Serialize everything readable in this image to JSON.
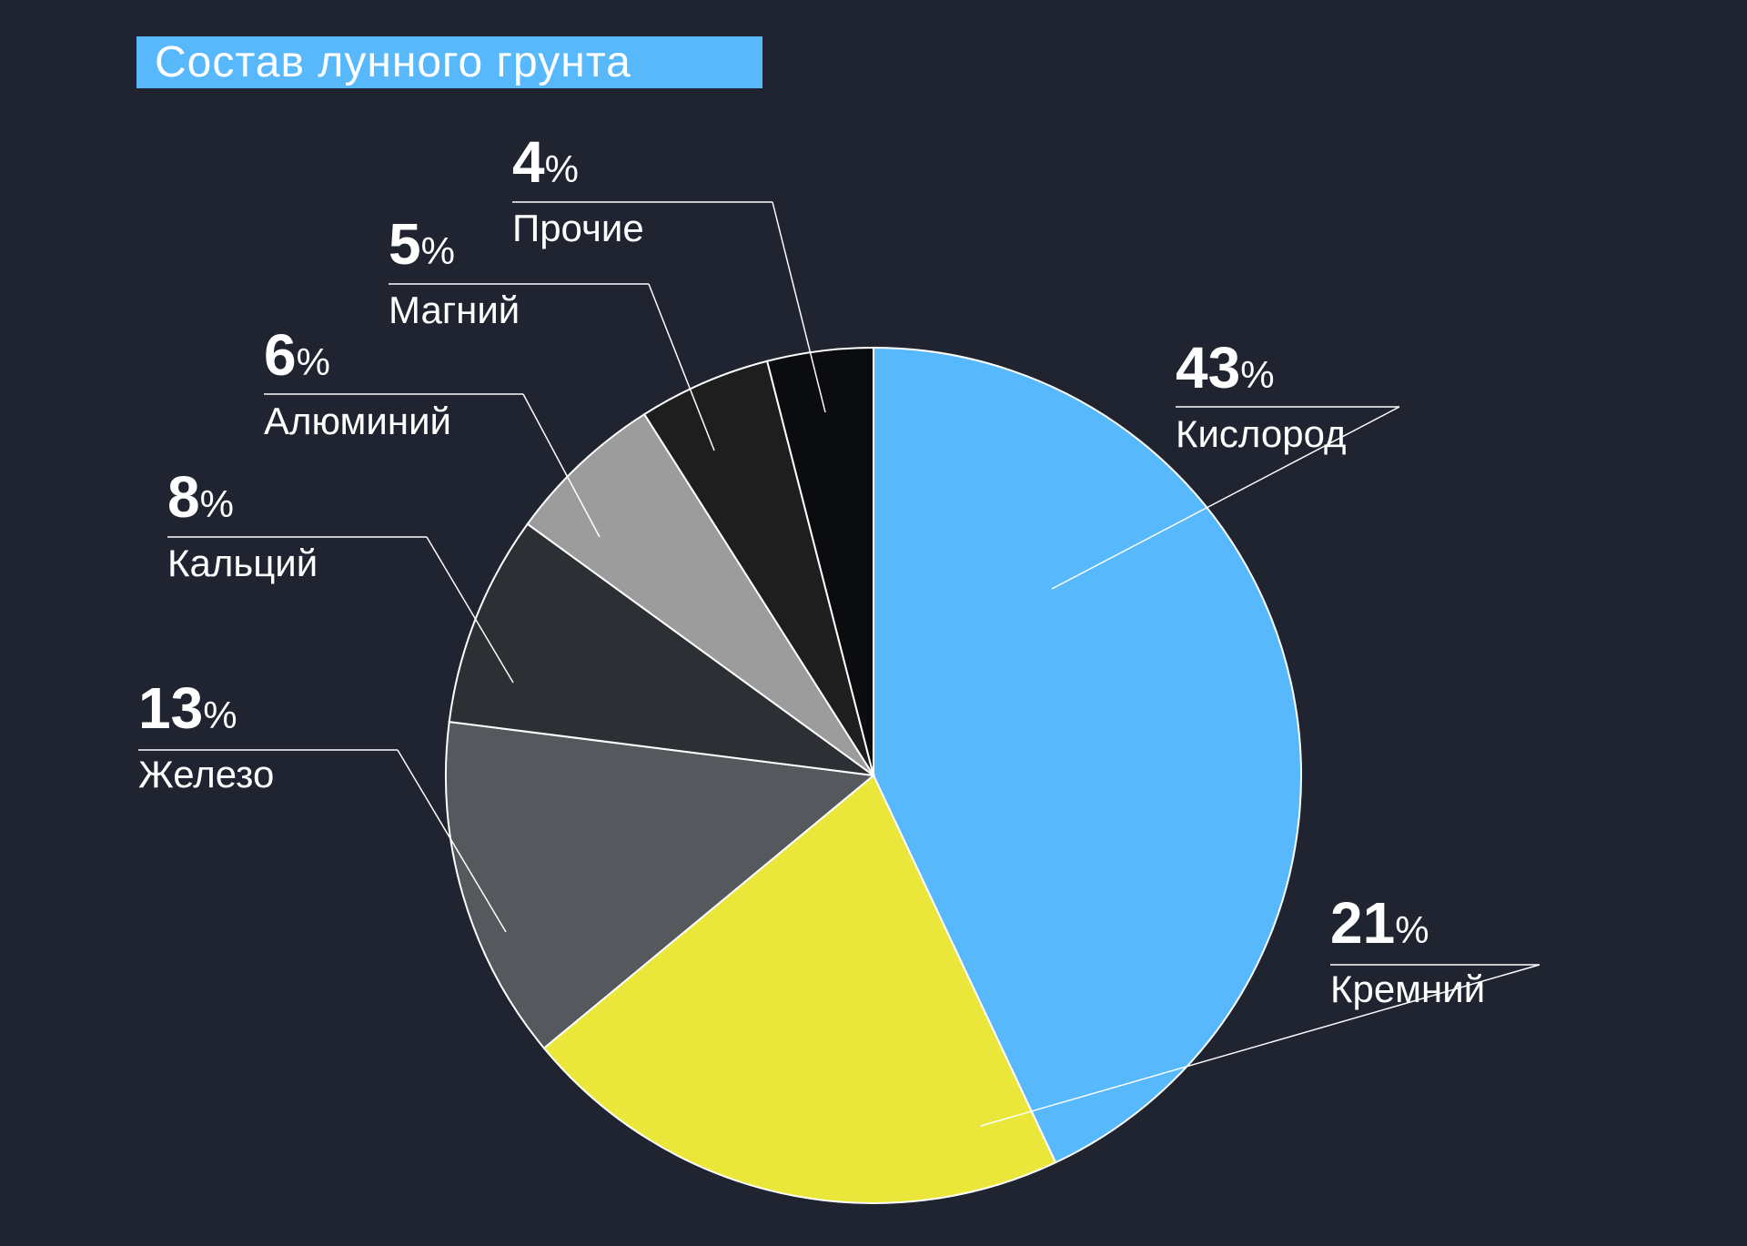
{
  "chart_data": {
    "type": "pie",
    "title": "Состав лунного грунта",
    "slices": [
      {
        "label": "Кислород",
        "value": 43,
        "color": "#57b8fc"
      },
      {
        "label": "Кремний",
        "value": 21,
        "color": "#ebe73a"
      },
      {
        "label": "Железо",
        "value": 13,
        "color": "#55595d"
      },
      {
        "label": "Кальций",
        "value": 8,
        "color": "#2c2f34"
      },
      {
        "label": "Алюминий",
        "value": 6,
        "color": "#9c9c9c"
      },
      {
        "label": "Магний",
        "value": 5,
        "color": "#1e1e1f"
      },
      {
        "label": "Прочие",
        "value": 4,
        "color": "#0b0c10"
      }
    ],
    "value_suffix": "%"
  }
}
